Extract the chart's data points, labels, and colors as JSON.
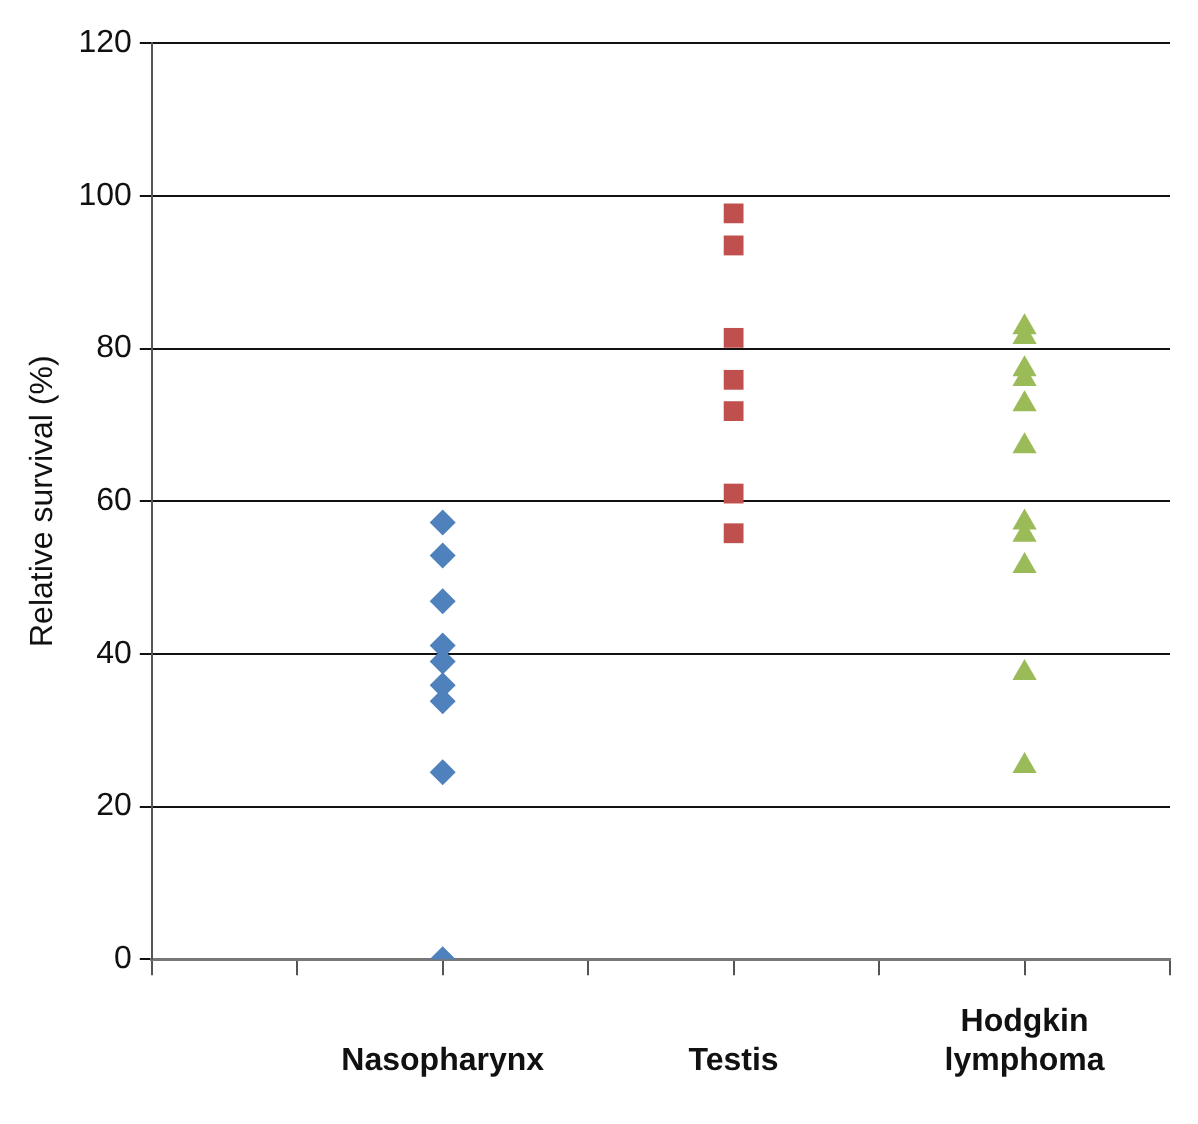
{
  "chart_data": {
    "type": "scatter",
    "ylabel": "Relative survival (%)",
    "categories": [
      null,
      null,
      "Nasopharynx",
      null,
      "Testis",
      null,
      "Hodgkin lymphoma",
      null
    ],
    "ylim": [
      0,
      120
    ],
    "yticks": [
      0,
      20,
      40,
      60,
      80,
      100,
      120
    ],
    "grid": "y",
    "legend": false,
    "series": [
      {
        "color": "#4f81bd",
        "marker": "diamond",
        "x": [
          "Nasopharynx",
          "Nasopharynx",
          "Nasopharynx",
          "Nasopharynx",
          "Nasopharynx",
          "Nasopharynx",
          "Nasopharynx",
          "Nasopharynx",
          "Nasopharynx"
        ],
        "values": [
          57.2,
          52.9,
          46.9,
          41.1,
          39.0,
          35.9,
          33.8,
          24.5,
          0
        ]
      },
      {
        "color": "#c0504d",
        "marker": "square",
        "x": [
          "Testis",
          "Testis",
          "Testis",
          "Testis",
          "Testis",
          "Testis",
          "Testis"
        ],
        "values": [
          97.7,
          93.5,
          81.4,
          75.9,
          71.8,
          61.0,
          55.8
        ]
      },
      {
        "color": "#9bbb59",
        "marker": "triangle",
        "x": [
          "Hodgkin lymphoma",
          "Hodgkin lymphoma",
          "Hodgkin lymphoma",
          "Hodgkin lymphoma",
          "Hodgkin lymphoma",
          "Hodgkin lymphoma",
          "Hodgkin lymphoma",
          "Hodgkin lymphoma",
          "Hodgkin lymphoma",
          "Hodgkin lymphoma",
          "Hodgkin lymphoma"
        ],
        "values": [
          82.8,
          81.5,
          77.3,
          76.0,
          72.7,
          67.2,
          57.2,
          55.6,
          51.5,
          37.5,
          25.3
        ]
      }
    ]
  }
}
